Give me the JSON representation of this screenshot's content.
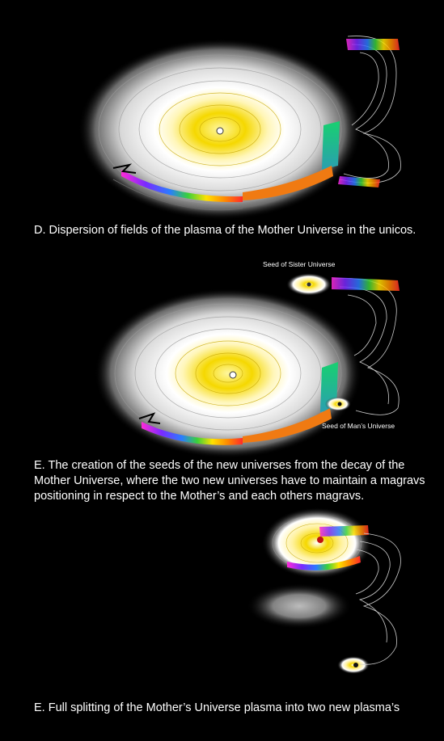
{
  "panels": [
    {
      "caption": "D.  Dispersion of fields of the plasma of the Mother Universe in the unicos."
    },
    {
      "caption": "E.  The creation of the seeds of the new universes from the decay of the Mother Universe, where the two new universes have to maintain a magravs positioning in respect to the Mother’s and each others magravs.",
      "labels": {
        "sister": "Seed of Sister Universe",
        "man": "Seed of Man’s Universe"
      }
    },
    {
      "caption": "E.  Full splitting of the Mother’s Universe plasma into two new plasma’s"
    }
  ],
  "colors": {
    "background": "#000000",
    "plasma_core": "#f5d800",
    "plasma_halo": "#ffffff",
    "rainbow": [
      "#ff2a2a",
      "#ff8a00",
      "#ffe100",
      "#3ad13a",
      "#2a7dff",
      "#7a2aff",
      "#ff2ad8"
    ],
    "teal": "#2fbf8f",
    "orange": "#f07a12"
  }
}
